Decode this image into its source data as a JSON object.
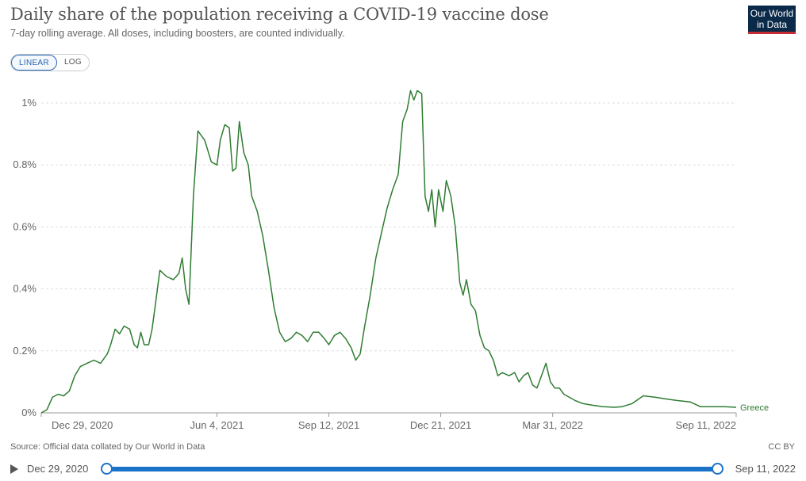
{
  "header": {
    "title": "Daily share of the population receiving a COVID-19 vaccine dose",
    "subtitle": "7-day rolling average. All doses, including boosters, are counted individually."
  },
  "logo": {
    "line1": "Our World",
    "line2": "in Data"
  },
  "scale_toggle": {
    "linear": "LINEAR",
    "log": "LOG",
    "selected": "LINEAR"
  },
  "footer": {
    "source": "Source: Official data collated by Our World in Data",
    "license": "CC BY"
  },
  "timeline": {
    "start_label": "Dec 29, 2020",
    "end_label": "Sep 11, 2022"
  },
  "colors": {
    "series": "#2f7d32",
    "grid": "#dddddd",
    "accent": "#1a73c9"
  },
  "chart_data": {
    "type": "line",
    "title": "Daily share of the population receiving a COVID-19 vaccine dose",
    "subtitle": "7-day rolling average. All doses, including boosters, are counted individually.",
    "xlabel": "",
    "ylabel": "",
    "x_range": [
      "2020-12-29",
      "2022-09-11"
    ],
    "ylim": [
      0,
      1.0
    ],
    "y_ticks": [
      0,
      0.2,
      0.4,
      0.6,
      0.8,
      1.0
    ],
    "y_tick_labels": [
      "0%",
      "0.2%",
      "0.4%",
      "0.6%",
      "0.8%",
      "1%"
    ],
    "x_ticks": [
      "2020-12-29",
      "2021-06-04",
      "2021-09-12",
      "2021-12-21",
      "2022-03-31",
      "2022-09-11"
    ],
    "x_tick_labels": [
      "Dec 29, 2020",
      "Jun 4, 2021",
      "Sep 12, 2021",
      "Dec 21, 2021",
      "Mar 31, 2022",
      "Sep 11, 2022"
    ],
    "grid": true,
    "legend": "end-label",
    "series": [
      {
        "name": "Greece",
        "color": "#2f7d32",
        "points": [
          [
            "2020-12-29",
            0.0
          ],
          [
            "2021-01-03",
            0.01
          ],
          [
            "2021-01-08",
            0.05
          ],
          [
            "2021-01-13",
            0.06
          ],
          [
            "2021-01-18",
            0.055
          ],
          [
            "2021-01-23",
            0.07
          ],
          [
            "2021-01-28",
            0.12
          ],
          [
            "2021-02-02",
            0.15
          ],
          [
            "2021-02-08",
            0.16
          ],
          [
            "2021-02-14",
            0.17
          ],
          [
            "2021-02-20",
            0.16
          ],
          [
            "2021-02-26",
            0.19
          ],
          [
            "2021-03-01",
            0.22
          ],
          [
            "2021-03-05",
            0.27
          ],
          [
            "2021-03-09",
            0.255
          ],
          [
            "2021-03-13",
            0.28
          ],
          [
            "2021-03-18",
            0.27
          ],
          [
            "2021-03-22",
            0.22
          ],
          [
            "2021-03-25",
            0.21
          ],
          [
            "2021-03-28",
            0.26
          ],
          [
            "2021-03-31",
            0.22
          ],
          [
            "2021-04-04",
            0.22
          ],
          [
            "2021-04-07",
            0.27
          ],
          [
            "2021-04-10",
            0.35
          ],
          [
            "2021-04-14",
            0.46
          ],
          [
            "2021-04-20",
            0.44
          ],
          [
            "2021-04-26",
            0.43
          ],
          [
            "2021-05-01",
            0.45
          ],
          [
            "2021-05-04",
            0.5
          ],
          [
            "2021-05-07",
            0.4
          ],
          [
            "2021-05-10",
            0.35
          ],
          [
            "2021-05-14",
            0.7
          ],
          [
            "2021-05-18",
            0.91
          ],
          [
            "2021-05-24",
            0.88
          ],
          [
            "2021-05-30",
            0.81
          ],
          [
            "2021-06-04",
            0.8
          ],
          [
            "2021-06-07",
            0.88
          ],
          [
            "2021-06-11",
            0.93
          ],
          [
            "2021-06-15",
            0.92
          ],
          [
            "2021-06-18",
            0.78
          ],
          [
            "2021-06-21",
            0.79
          ],
          [
            "2021-06-24",
            0.94
          ],
          [
            "2021-06-28",
            0.84
          ],
          [
            "2021-07-02",
            0.8
          ],
          [
            "2021-07-05",
            0.7
          ],
          [
            "2021-07-10",
            0.65
          ],
          [
            "2021-07-15",
            0.57
          ],
          [
            "2021-07-20",
            0.46
          ],
          [
            "2021-07-25",
            0.34
          ],
          [
            "2021-07-30",
            0.26
          ],
          [
            "2021-08-04",
            0.23
          ],
          [
            "2021-08-09",
            0.24
          ],
          [
            "2021-08-14",
            0.26
          ],
          [
            "2021-08-19",
            0.25
          ],
          [
            "2021-08-24",
            0.23
          ],
          [
            "2021-08-29",
            0.26
          ],
          [
            "2021-09-03",
            0.26
          ],
          [
            "2021-09-08",
            0.24
          ],
          [
            "2021-09-12",
            0.22
          ],
          [
            "2021-09-17",
            0.25
          ],
          [
            "2021-09-22",
            0.26
          ],
          [
            "2021-09-27",
            0.24
          ],
          [
            "2021-10-02",
            0.21
          ],
          [
            "2021-10-06",
            0.17
          ],
          [
            "2021-10-10",
            0.19
          ],
          [
            "2021-10-14",
            0.28
          ],
          [
            "2021-10-19",
            0.38
          ],
          [
            "2021-10-24",
            0.5
          ],
          [
            "2021-10-29",
            0.58
          ],
          [
            "2021-11-03",
            0.66
          ],
          [
            "2021-11-08",
            0.72
          ],
          [
            "2021-11-13",
            0.77
          ],
          [
            "2021-11-17",
            0.94
          ],
          [
            "2021-11-21",
            0.98
          ],
          [
            "2021-11-24",
            1.04
          ],
          [
            "2021-11-27",
            1.01
          ],
          [
            "2021-11-30",
            1.04
          ],
          [
            "2021-12-04",
            1.03
          ],
          [
            "2021-12-07",
            0.7
          ],
          [
            "2021-12-10",
            0.65
          ],
          [
            "2021-12-13",
            0.72
          ],
          [
            "2021-12-16",
            0.6
          ],
          [
            "2021-12-19",
            0.72
          ],
          [
            "2021-12-23",
            0.65
          ],
          [
            "2021-12-26",
            0.75
          ],
          [
            "2021-12-30",
            0.7
          ],
          [
            "2022-01-03",
            0.6
          ],
          [
            "2022-01-07",
            0.42
          ],
          [
            "2022-01-10",
            0.38
          ],
          [
            "2022-01-13",
            0.43
          ],
          [
            "2022-01-17",
            0.35
          ],
          [
            "2022-01-21",
            0.33
          ],
          [
            "2022-01-25",
            0.25
          ],
          [
            "2022-01-29",
            0.21
          ],
          [
            "2022-02-02",
            0.2
          ],
          [
            "2022-02-06",
            0.17
          ],
          [
            "2022-02-10",
            0.12
          ],
          [
            "2022-02-14",
            0.13
          ],
          [
            "2022-02-20",
            0.12
          ],
          [
            "2022-02-25",
            0.13
          ],
          [
            "2022-03-01",
            0.1
          ],
          [
            "2022-03-05",
            0.12
          ],
          [
            "2022-03-09",
            0.13
          ],
          [
            "2022-03-13",
            0.09
          ],
          [
            "2022-03-17",
            0.08
          ],
          [
            "2022-03-21",
            0.12
          ],
          [
            "2022-03-25",
            0.16
          ],
          [
            "2022-03-29",
            0.1
          ],
          [
            "2022-04-02",
            0.08
          ],
          [
            "2022-04-06",
            0.08
          ],
          [
            "2022-04-10",
            0.06
          ],
          [
            "2022-04-15",
            0.05
          ],
          [
            "2022-04-20",
            0.04
          ],
          [
            "2022-04-27",
            0.03
          ],
          [
            "2022-05-05",
            0.025
          ],
          [
            "2022-05-15",
            0.02
          ],
          [
            "2022-05-25",
            0.018
          ],
          [
            "2022-06-01",
            0.02
          ],
          [
            "2022-06-10",
            0.03
          ],
          [
            "2022-06-20",
            0.055
          ],
          [
            "2022-07-01",
            0.05
          ],
          [
            "2022-07-10",
            0.045
          ],
          [
            "2022-07-20",
            0.04
          ],
          [
            "2022-08-01",
            0.035
          ],
          [
            "2022-08-10",
            0.02
          ],
          [
            "2022-08-20",
            0.02
          ],
          [
            "2022-09-01",
            0.02
          ],
          [
            "2022-09-11",
            0.018
          ]
        ]
      }
    ]
  }
}
